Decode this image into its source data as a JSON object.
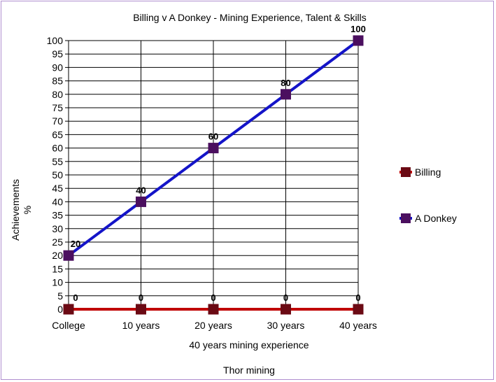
{
  "chart_data": {
    "type": "line",
    "title": "Billing v A Donkey - Mining Experience, Talent & Skills",
    "xlabel": "40 years mining experience",
    "ylabel": "Achievements %",
    "footer": "Thor mining",
    "categories": [
      "College",
      "10 years",
      "20 years",
      "30 years",
      "40 years"
    ],
    "ylim": [
      0,
      100
    ],
    "ytick_step": 5,
    "grid": true,
    "legend_position": "right",
    "series": [
      {
        "name": "Billing",
        "values": [
          0,
          0,
          0,
          0,
          0
        ],
        "line_color": "#c00000",
        "marker_color": "#6b0a14"
      },
      {
        "name": "A Donkey",
        "values": [
          20,
          40,
          60,
          80,
          100
        ],
        "line_color": "#1414c8",
        "marker_color": "#4b0f5f"
      }
    ]
  }
}
